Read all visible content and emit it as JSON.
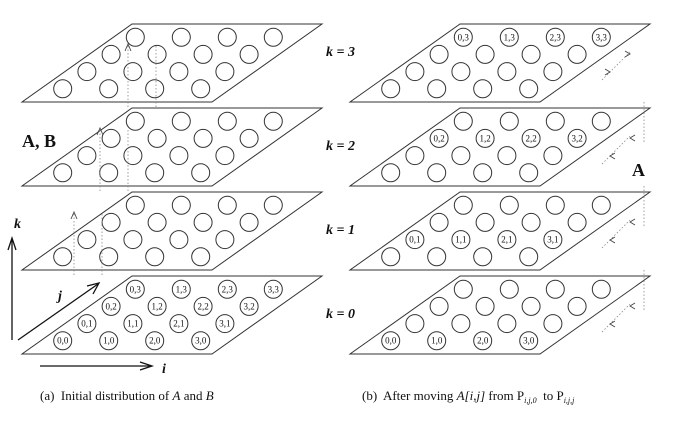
{
  "left_panel": {
    "matrix_label": "A, B",
    "bottom_labels": [
      "0,0",
      "1,0",
      "2,0",
      "3,0",
      "0,1",
      "1,1",
      "2,1",
      "3,1",
      "0,2",
      "1,2",
      "2,2",
      "3,2",
      "0,3",
      "1,3",
      "2,3",
      "3,3"
    ],
    "axes": {
      "k": "k",
      "j": "j",
      "i": "i"
    },
    "caption": {
      "prefix": "(a)  Initial distribution of ",
      "var1": "A",
      "middle": " and ",
      "var2": "B"
    }
  },
  "right_panel": {
    "matrix_label": "A",
    "levels": [
      {
        "k_label": "k = 3",
        "cells": [
          "0,3",
          "1,3",
          "2,3",
          "3,3"
        ]
      },
      {
        "k_label": "k = 2",
        "cells": [
          "0,2",
          "1,2",
          "2,2",
          "3,2"
        ]
      },
      {
        "k_label": "k = 1",
        "cells": [
          "0,1",
          "1,1",
          "2,1",
          "3,1"
        ]
      },
      {
        "k_label": "k = 0",
        "cells": [
          "0,0",
          "1,0",
          "2,0",
          "3,0"
        ]
      }
    ],
    "caption": {
      "prefix": "(b)  After moving ",
      "expr": "A[i,j]",
      "from": " from P",
      "sub_from": "i,j,0",
      "to": "  to P",
      "sub_to": "i,j,j"
    }
  }
}
